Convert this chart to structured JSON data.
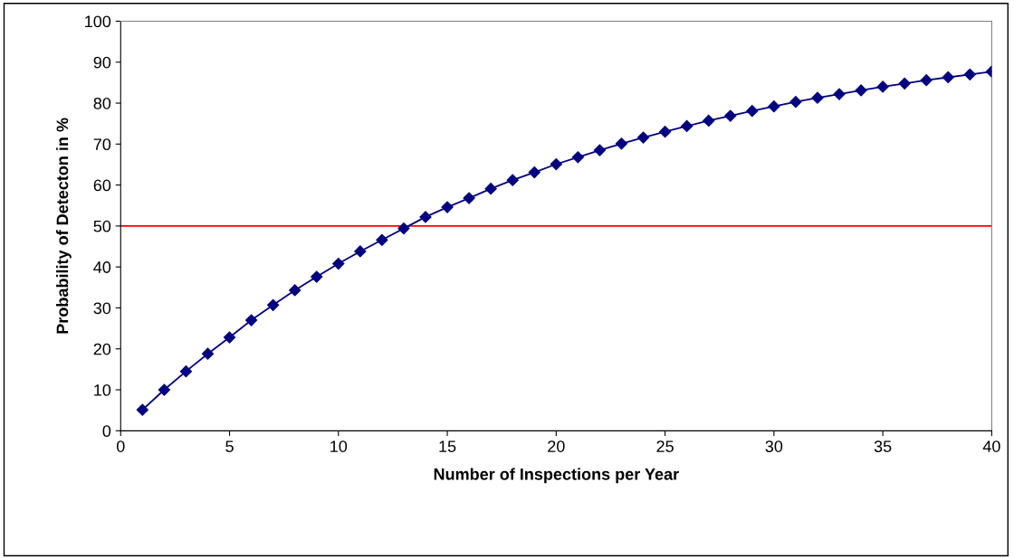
{
  "chart_data": {
    "type": "line",
    "xlabel": "Number of Inspections per Year",
    "ylabel": "Probability of Detecton in %",
    "x": [
      1,
      2,
      3,
      4,
      5,
      6,
      7,
      8,
      9,
      10,
      11,
      12,
      13,
      14,
      15,
      16,
      17,
      18,
      19,
      20,
      21,
      22,
      23,
      24,
      25,
      26,
      27,
      28,
      29,
      30,
      31,
      32,
      33,
      34,
      35,
      36,
      37,
      38,
      39,
      40
    ],
    "series": [
      {
        "color": "#000080",
        "values": [
          5.1,
          10,
          14.5,
          18.8,
          22.8,
          27,
          30.7,
          34.3,
          37.6,
          40.8,
          43.8,
          46.6,
          49.4,
          52.2,
          54.6,
          56.8,
          59.1,
          61.2,
          63.1,
          65.1,
          66.8,
          68.5,
          70.1,
          71.6,
          73.0,
          74.4,
          75.7,
          76.9,
          78.1,
          79.2,
          80.3,
          81.3,
          82.2,
          83.1,
          84.0,
          84.8,
          85.6,
          86.3,
          87.0,
          87.7
        ]
      }
    ],
    "ref_lines": [
      {
        "axis": "y",
        "value": 50,
        "color": "#ff0000",
        "line_style": "solid"
      }
    ],
    "xlim": [
      0,
      40
    ],
    "xticks": [
      0,
      5,
      10,
      15,
      20,
      25,
      30,
      35,
      40
    ],
    "ylim": [
      0,
      100
    ],
    "yticks": [
      0,
      10,
      20,
      30,
      40,
      50,
      60,
      70,
      80,
      90,
      100
    ],
    "marker": "diamond",
    "line_style": "solid",
    "grid": false,
    "legend": false
  }
}
